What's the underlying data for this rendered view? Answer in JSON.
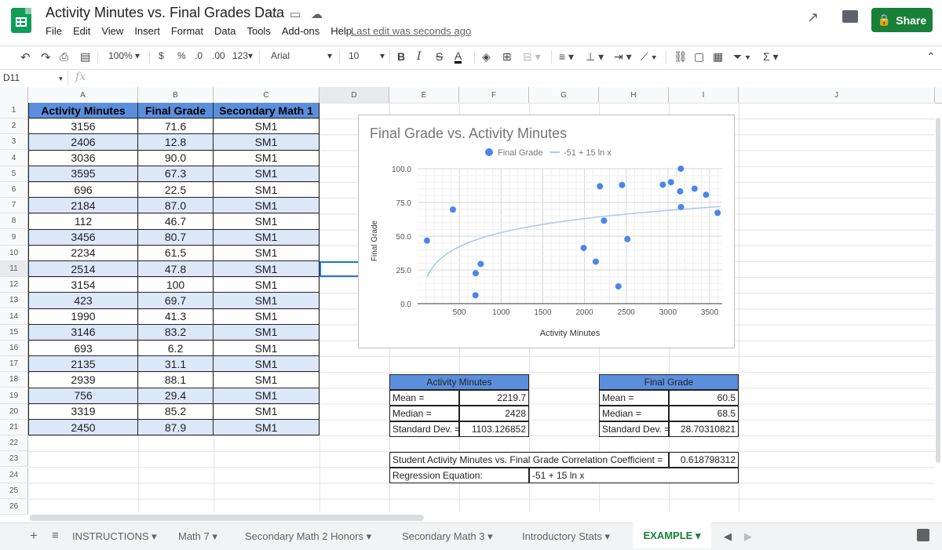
{
  "header": {
    "doc_title": "Activity Minutes vs. Final Grades Data",
    "menus": [
      "File",
      "Edit",
      "View",
      "Insert",
      "Format",
      "Data",
      "Tools",
      "Add-ons",
      "Help"
    ],
    "last_edit": "Last edit was seconds ago",
    "share_label": "Share"
  },
  "toolbar": {
    "zoom": "100%",
    "currency": "$",
    "percent": "%",
    "dec_decrease": ".0",
    "dec_increase": ".00",
    "more_formats": "123",
    "font": "Arial",
    "font_size": "10",
    "bold": "B",
    "italic": "I",
    "strike": "S",
    "text_color": "A"
  },
  "formula_bar": {
    "name_box": "D11",
    "fx": "fx"
  },
  "columns": [
    "A",
    "B",
    "C",
    "D",
    "E",
    "F",
    "G",
    "H",
    "I",
    "J"
  ],
  "rows": [
    "1",
    "2",
    "3",
    "4",
    "5",
    "6",
    "7",
    "8",
    "9",
    "10",
    "11",
    "12",
    "13",
    "14",
    "15",
    "16",
    "17",
    "18",
    "19",
    "20",
    "21",
    "22",
    "23",
    "24",
    "25",
    "26"
  ],
  "data_table": {
    "headers": [
      "Activity Minutes",
      "Final Grade",
      "Secondary Math 1"
    ],
    "rows": [
      [
        "3156",
        "71.6",
        "SM1"
      ],
      [
        "2406",
        "12.8",
        "SM1"
      ],
      [
        "3036",
        "90.0",
        "SM1"
      ],
      [
        "3595",
        "67.3",
        "SM1"
      ],
      [
        "696",
        "22.5",
        "SM1"
      ],
      [
        "2184",
        "87.0",
        "SM1"
      ],
      [
        "112",
        "46.7",
        "SM1"
      ],
      [
        "3456",
        "80.7",
        "SM1"
      ],
      [
        "2234",
        "61.5",
        "SM1"
      ],
      [
        "2514",
        "47.8",
        "SM1"
      ],
      [
        "3154",
        "100",
        "SM1"
      ],
      [
        "423",
        "69.7",
        "SM1"
      ],
      [
        "1990",
        "41.3",
        "SM1"
      ],
      [
        "3146",
        "83.2",
        "SM1"
      ],
      [
        "693",
        "6.2",
        "SM1"
      ],
      [
        "2135",
        "31.1",
        "SM1"
      ],
      [
        "2939",
        "88.1",
        "SM1"
      ],
      [
        "756",
        "29.4",
        "SM1"
      ],
      [
        "3319",
        "85.2",
        "SM1"
      ],
      [
        "2450",
        "87.9",
        "SM1"
      ]
    ]
  },
  "activity_stats": {
    "title": "Activity Minutes",
    "rows": [
      [
        "Mean =",
        "2219.7"
      ],
      [
        "Median =",
        "2428"
      ],
      [
        "Standard Dev. =",
        "1103.126852"
      ]
    ]
  },
  "grade_stats": {
    "title": "Final Grade",
    "rows": [
      [
        "Mean =",
        "60.5"
      ],
      [
        "Median =",
        "68.5"
      ],
      [
        "Standard Dev. =",
        "28.70310821"
      ]
    ]
  },
  "correlation": {
    "label": "Student Activity Minutes vs. Final Grade Correlation Coefficient =",
    "value": "0.618798312",
    "regression_label": "Regression Equation:",
    "regression_value": "-51 + 15 ln x"
  },
  "chart_data": {
    "type": "scatter",
    "title": "Final Grade vs. Activity Minutes",
    "xlabel": "Activity Minutes",
    "ylabel": "Final Grade",
    "xlim": [
      0,
      3650
    ],
    "ylim": [
      0,
      100
    ],
    "x_ticks": [
      "500",
      "1000",
      "1500",
      "2000",
      "2500",
      "3000",
      "3500"
    ],
    "y_ticks": [
      "0.0",
      "25.0",
      "50.0",
      "75.0",
      "100.0"
    ],
    "legend_position": "top",
    "series": [
      {
        "name": "Final Grade",
        "color": "#4a86e8",
        "x": [
          3156,
          2406,
          3036,
          3595,
          696,
          2184,
          112,
          3456,
          2234,
          2514,
          3154,
          423,
          1990,
          3146,
          693,
          2135,
          2939,
          756,
          3319,
          2450
        ],
        "y": [
          71.6,
          12.8,
          90.0,
          67.3,
          22.5,
          87.0,
          46.7,
          80.7,
          61.5,
          47.8,
          100,
          69.7,
          41.3,
          83.2,
          6.2,
          31.1,
          88.1,
          29.4,
          85.2,
          87.9
        ]
      },
      {
        "name": "-51 + 15 ln x",
        "color": "#a8c7f0",
        "trendline": {
          "a": -51,
          "b": 15,
          "form": "a + b ln x"
        }
      }
    ]
  },
  "sheet_tabs": [
    "INSTRUCTIONS",
    "Math 7",
    "Secondary Math 2 Honors",
    "Secondary Math 3",
    "Introductory Stats",
    "EXAMPLE"
  ],
  "colors": {
    "header_blue": "#5b8fde",
    "band_blue": "#dce7f8",
    "share_green": "#188038"
  }
}
